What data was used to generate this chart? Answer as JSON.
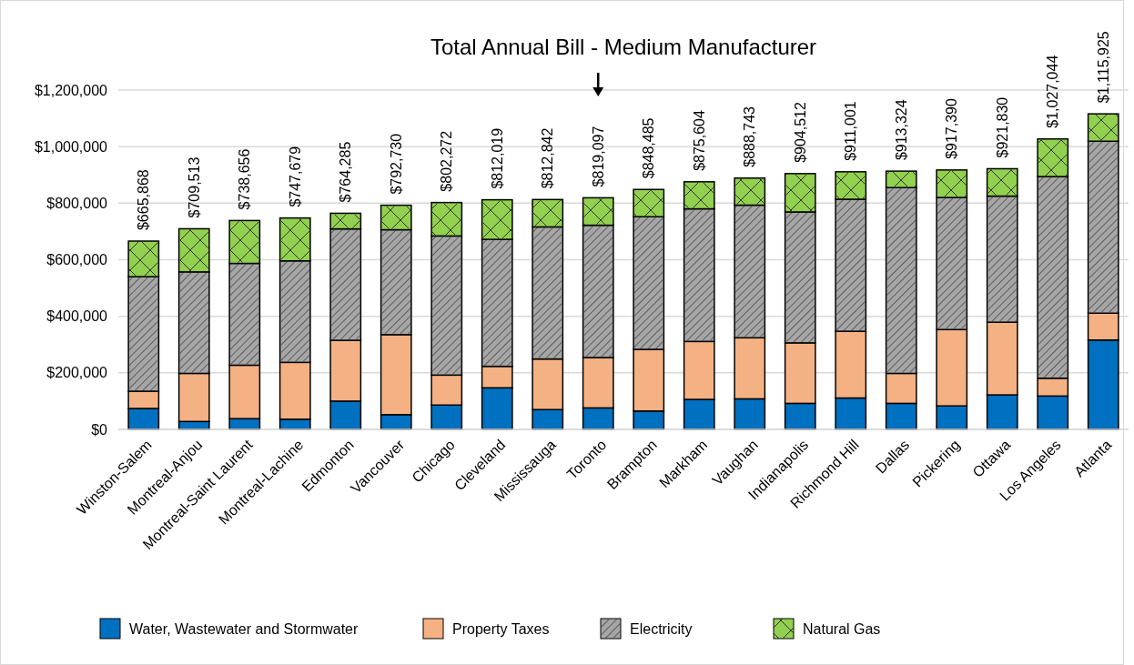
{
  "chart_data": {
    "type": "bar",
    "stacked": true,
    "title": "Total Annual Bill - Medium Manufacturer",
    "categories": [
      "Winston-Salem",
      "Montreal-Anjou",
      "Montreal-Saint Laurent",
      "Montreal-Lachine",
      "Edmonton",
      "Vancouver",
      "Chicago",
      "Cleveland",
      "Mississauga",
      "Toronto",
      "Brampton",
      "Markham",
      "Vaughan",
      "Indianapolis",
      "Richmond Hill",
      "Dallas",
      "Pickering",
      "Ottawa",
      "Los Angeles",
      "Atlanta"
    ],
    "series": [
      {
        "name": "Water, Wastewater and Stormwater",
        "color": "#0070c0",
        "values": [
          74000,
          28000,
          38000,
          36000,
          100000,
          52000,
          86000,
          147000,
          70000,
          76000,
          65000,
          106000,
          108000,
          92000,
          111000,
          92000,
          83000,
          122000,
          118000,
          316000
        ]
      },
      {
        "name": "Property Taxes",
        "color": "#f4b183",
        "values": [
          61000,
          170000,
          189000,
          201000,
          215000,
          283000,
          106000,
          76000,
          179000,
          178000,
          218000,
          205000,
          216000,
          214000,
          236000,
          106000,
          270000,
          257000,
          63000,
          95000
        ]
      },
      {
        "name": "Electricity",
        "color": "#a6a6a6",
        "values": [
          405000,
          359000,
          360000,
          359000,
          394000,
          371000,
          492000,
          449000,
          467000,
          468000,
          469000,
          469000,
          469000,
          463000,
          467000,
          657000,
          467000,
          446000,
          713000,
          608000
        ]
      },
      {
        "name": "Natural Gas",
        "color": "#92d050",
        "values": [
          125868,
          152513,
          151656,
          151679,
          55285,
          86730,
          118272,
          140019,
          96842,
          97097,
          96485,
          95604,
          95743,
          135512,
          97001,
          58324,
          97390,
          96830,
          133044,
          96925
        ]
      }
    ],
    "totals": [
      "$665,868",
      "$709,513",
      "$738,656",
      "$747,679",
      "$764,285",
      "$792,730",
      "$802,272",
      "$812,019",
      "$812,842",
      "$819,097",
      "$848,485",
      "$875,604",
      "$888,743",
      "$904,512",
      "$911,001",
      "$913,324",
      "$917,390",
      "$921,830",
      "$1,027,044",
      "$1,115,925"
    ],
    "ylim": [
      0,
      1200000
    ],
    "yticks": [
      {
        "value": 0,
        "label": "$0"
      },
      {
        "value": 200000,
        "label": "$200,000"
      },
      {
        "value": 400000,
        "label": "$400,000"
      },
      {
        "value": 600000,
        "label": "$600,000"
      },
      {
        "value": 800000,
        "label": "$800,000"
      },
      {
        "value": 1000000,
        "label": "$1,000,000"
      },
      {
        "value": 1200000,
        "label": "$1,200,000"
      }
    ],
    "grid": "y",
    "legend": "bottom"
  }
}
